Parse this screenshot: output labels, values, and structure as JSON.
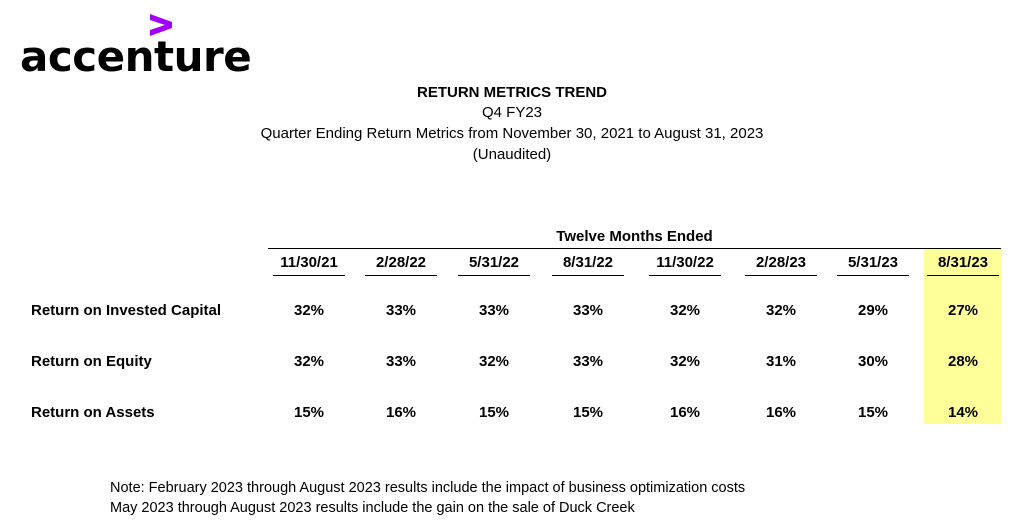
{
  "logo": {
    "text": "accenture",
    "accent_color": "#a100ff"
  },
  "header": {
    "title": "RETURN METRICS TREND",
    "subtitle": "Q4 FY23",
    "description": "Quarter Ending Return Metrics from November 30, 2021 to August 31, 2023",
    "unaudited": "(Unaudited)"
  },
  "table": {
    "group_header": "Twelve Months Ended",
    "highlight_color": "#ffff99",
    "columns": [
      "11/30/21",
      "2/28/22",
      "5/31/22",
      "8/31/22",
      "11/30/22",
      "2/28/23",
      "5/31/23",
      "8/31/23"
    ],
    "rows": [
      {
        "label": "Return on Invested Capital",
        "values": [
          "32%",
          "33%",
          "33%",
          "33%",
          "32%",
          "32%",
          "29%",
          "27%"
        ]
      },
      {
        "label": "Return on Equity",
        "values": [
          "32%",
          "33%",
          "32%",
          "33%",
          "32%",
          "31%",
          "30%",
          "28%"
        ]
      },
      {
        "label": "Return on Assets",
        "values": [
          "15%",
          "16%",
          "15%",
          "15%",
          "16%",
          "16%",
          "15%",
          "14%"
        ]
      }
    ]
  },
  "notes": [
    "Note: February 2023 through August 2023 results include the impact of business optimization costs",
    "May 2023 through August 2023 results include the gain on the sale of Duck Creek"
  ]
}
